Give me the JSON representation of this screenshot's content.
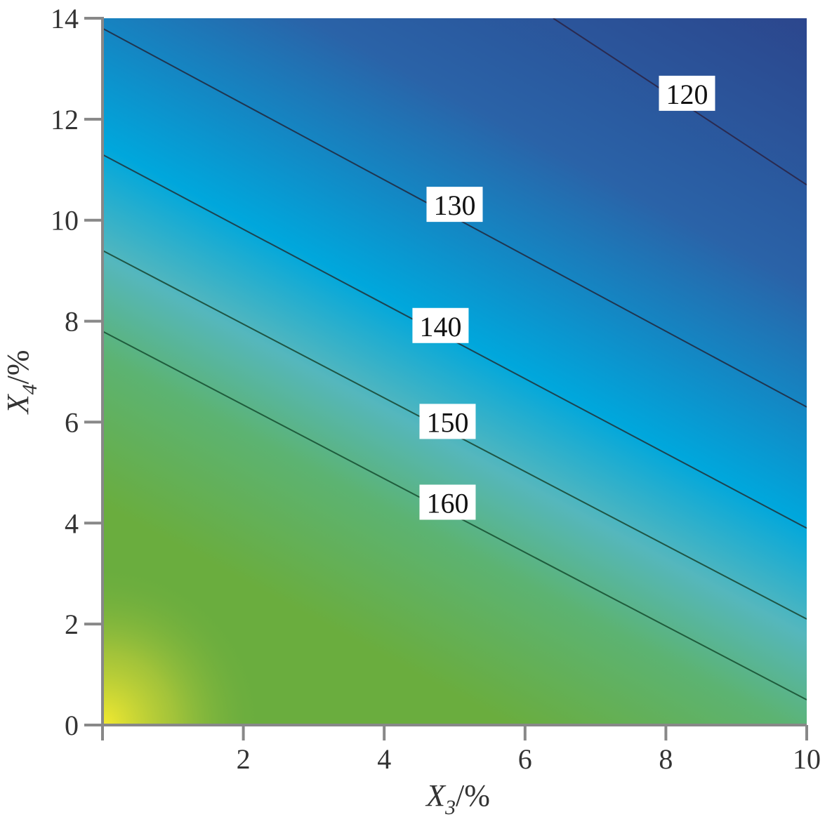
{
  "chart_data": {
    "type": "heatmap",
    "subtype": "contour",
    "title": "",
    "xlabel": {
      "var": "X",
      "sub": "3",
      "unit": "/%"
    },
    "ylabel": {
      "var": "X",
      "sub": "4",
      "unit": "/%"
    },
    "xlim": [
      0,
      10
    ],
    "ylim": [
      0,
      14
    ],
    "xticks": [
      "2",
      "4",
      "6",
      "8",
      "10"
    ],
    "yticks": [
      "0",
      "2",
      "4",
      "6",
      "8",
      "10",
      "12",
      "14"
    ],
    "grid": false,
    "colormap": [
      "#2c3e85",
      "#2a63a8",
      "#00a7dc",
      "#55b7bd",
      "#5cb372",
      "#6aad3e",
      "#f2e632"
    ],
    "contours": [
      {
        "level": "120",
        "color": "#2a2a50",
        "points": [
          [
            6.4,
            14.0
          ],
          [
            10.0,
            10.7
          ]
        ],
        "label_at": [
          8.3,
          12.5
        ]
      },
      {
        "level": "130",
        "color": "#1f3550",
        "points": [
          [
            0.0,
            13.8
          ],
          [
            10.0,
            6.3
          ]
        ],
        "label_at": [
          5.0,
          10.3
        ]
      },
      {
        "level": "140",
        "color": "#1c4350",
        "points": [
          [
            0.0,
            11.3
          ],
          [
            10.0,
            3.9
          ]
        ],
        "label_at": [
          4.8,
          7.9
        ]
      },
      {
        "level": "150",
        "color": "#1e5545",
        "points": [
          [
            0.0,
            9.4
          ],
          [
            10.0,
            2.1
          ]
        ],
        "label_at": [
          4.9,
          6.0
        ]
      },
      {
        "level": "160",
        "color": "#1f5c3c",
        "points": [
          [
            0.0,
            7.8
          ],
          [
            10.0,
            0.5
          ]
        ],
        "label_at": [
          4.9,
          4.4
        ]
      }
    ]
  }
}
